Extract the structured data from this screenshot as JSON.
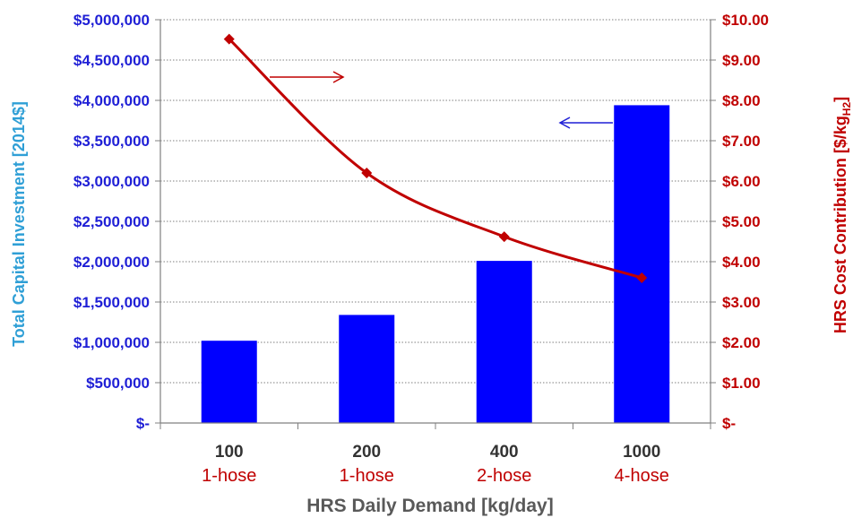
{
  "chart_data": {
    "type": "bar",
    "categories": [
      "100",
      "200",
      "400",
      "1000"
    ],
    "category_sublabels": [
      "1-hose",
      "1-hose",
      "2-hose",
      "4-hose"
    ],
    "xlabel": "HRS Daily Demand [kg/day]",
    "ylabel_left": "Total  Capital Investment  [2014$]",
    "ylabel_right_main": "HRS Cost Contribution [$/kg",
    "ylabel_right_sub": "H2",
    "ylabel_right_end": "]",
    "left_axis": {
      "ylim": [
        0,
        5000000
      ],
      "tick_labels": [
        "$-",
        "$500,000",
        "$1,000,000",
        "$1,500,000",
        "$2,000,000",
        "$2,500,000",
        "$3,000,000",
        "$3,500,000",
        "$4,000,000",
        "$4,500,000",
        "$5,000,000"
      ],
      "color": "#1f1fd6"
    },
    "right_axis": {
      "ylim": [
        0,
        10
      ],
      "tick_labels": [
        "$-",
        "$1.00",
        "$2.00",
        "$3.00",
        "$4.00",
        "$5.00",
        "$6.00",
        "$7.00",
        "$8.00",
        "$9.00",
        "$10.00"
      ],
      "color": "#c00000"
    },
    "bars": {
      "axis": "left",
      "color": "#0000ff",
      "values": [
        1020000,
        1340000,
        2010000,
        3940000
      ]
    },
    "line": {
      "axis": "right",
      "color": "#c00000",
      "values": [
        9.52,
        6.2,
        4.62,
        3.6
      ]
    },
    "grid": true,
    "annotations": [
      {
        "type": "arrow",
        "direction": "right",
        "color": "#c00000",
        "points_to": "right axis"
      },
      {
        "type": "arrow",
        "direction": "left",
        "color": "#1f1fd6",
        "points_to": "left axis"
      }
    ]
  }
}
